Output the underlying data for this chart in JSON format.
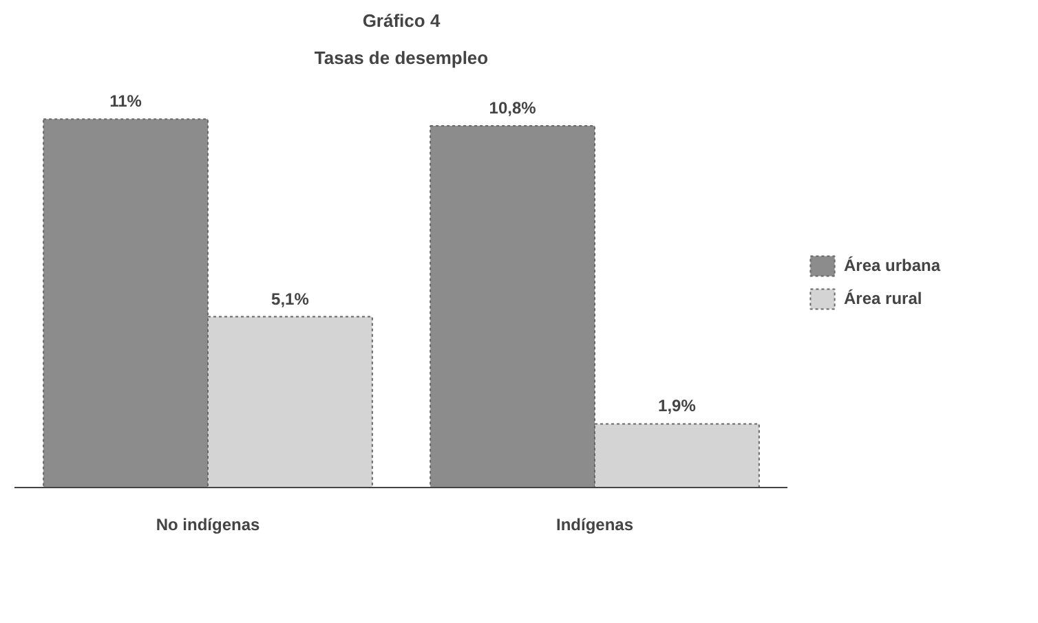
{
  "chart_data": {
    "type": "bar",
    "title": "Gráfico 4",
    "subtitle": "Tasas de desempleo",
    "categories": [
      "No indígenas",
      "Indígenas"
    ],
    "series": [
      {
        "name": "Área urbana",
        "color": "#8c8c8c",
        "values": [
          11,
          10.8
        ],
        "value_labels": [
          "11%",
          "10,8%"
        ]
      },
      {
        "name": "Área rural",
        "color": "#d4d4d4",
        "values": [
          5.1,
          1.9
        ],
        "value_labels": [
          "5,1%",
          "1,9%"
        ]
      }
    ],
    "grid": false,
    "legend": "right"
  }
}
